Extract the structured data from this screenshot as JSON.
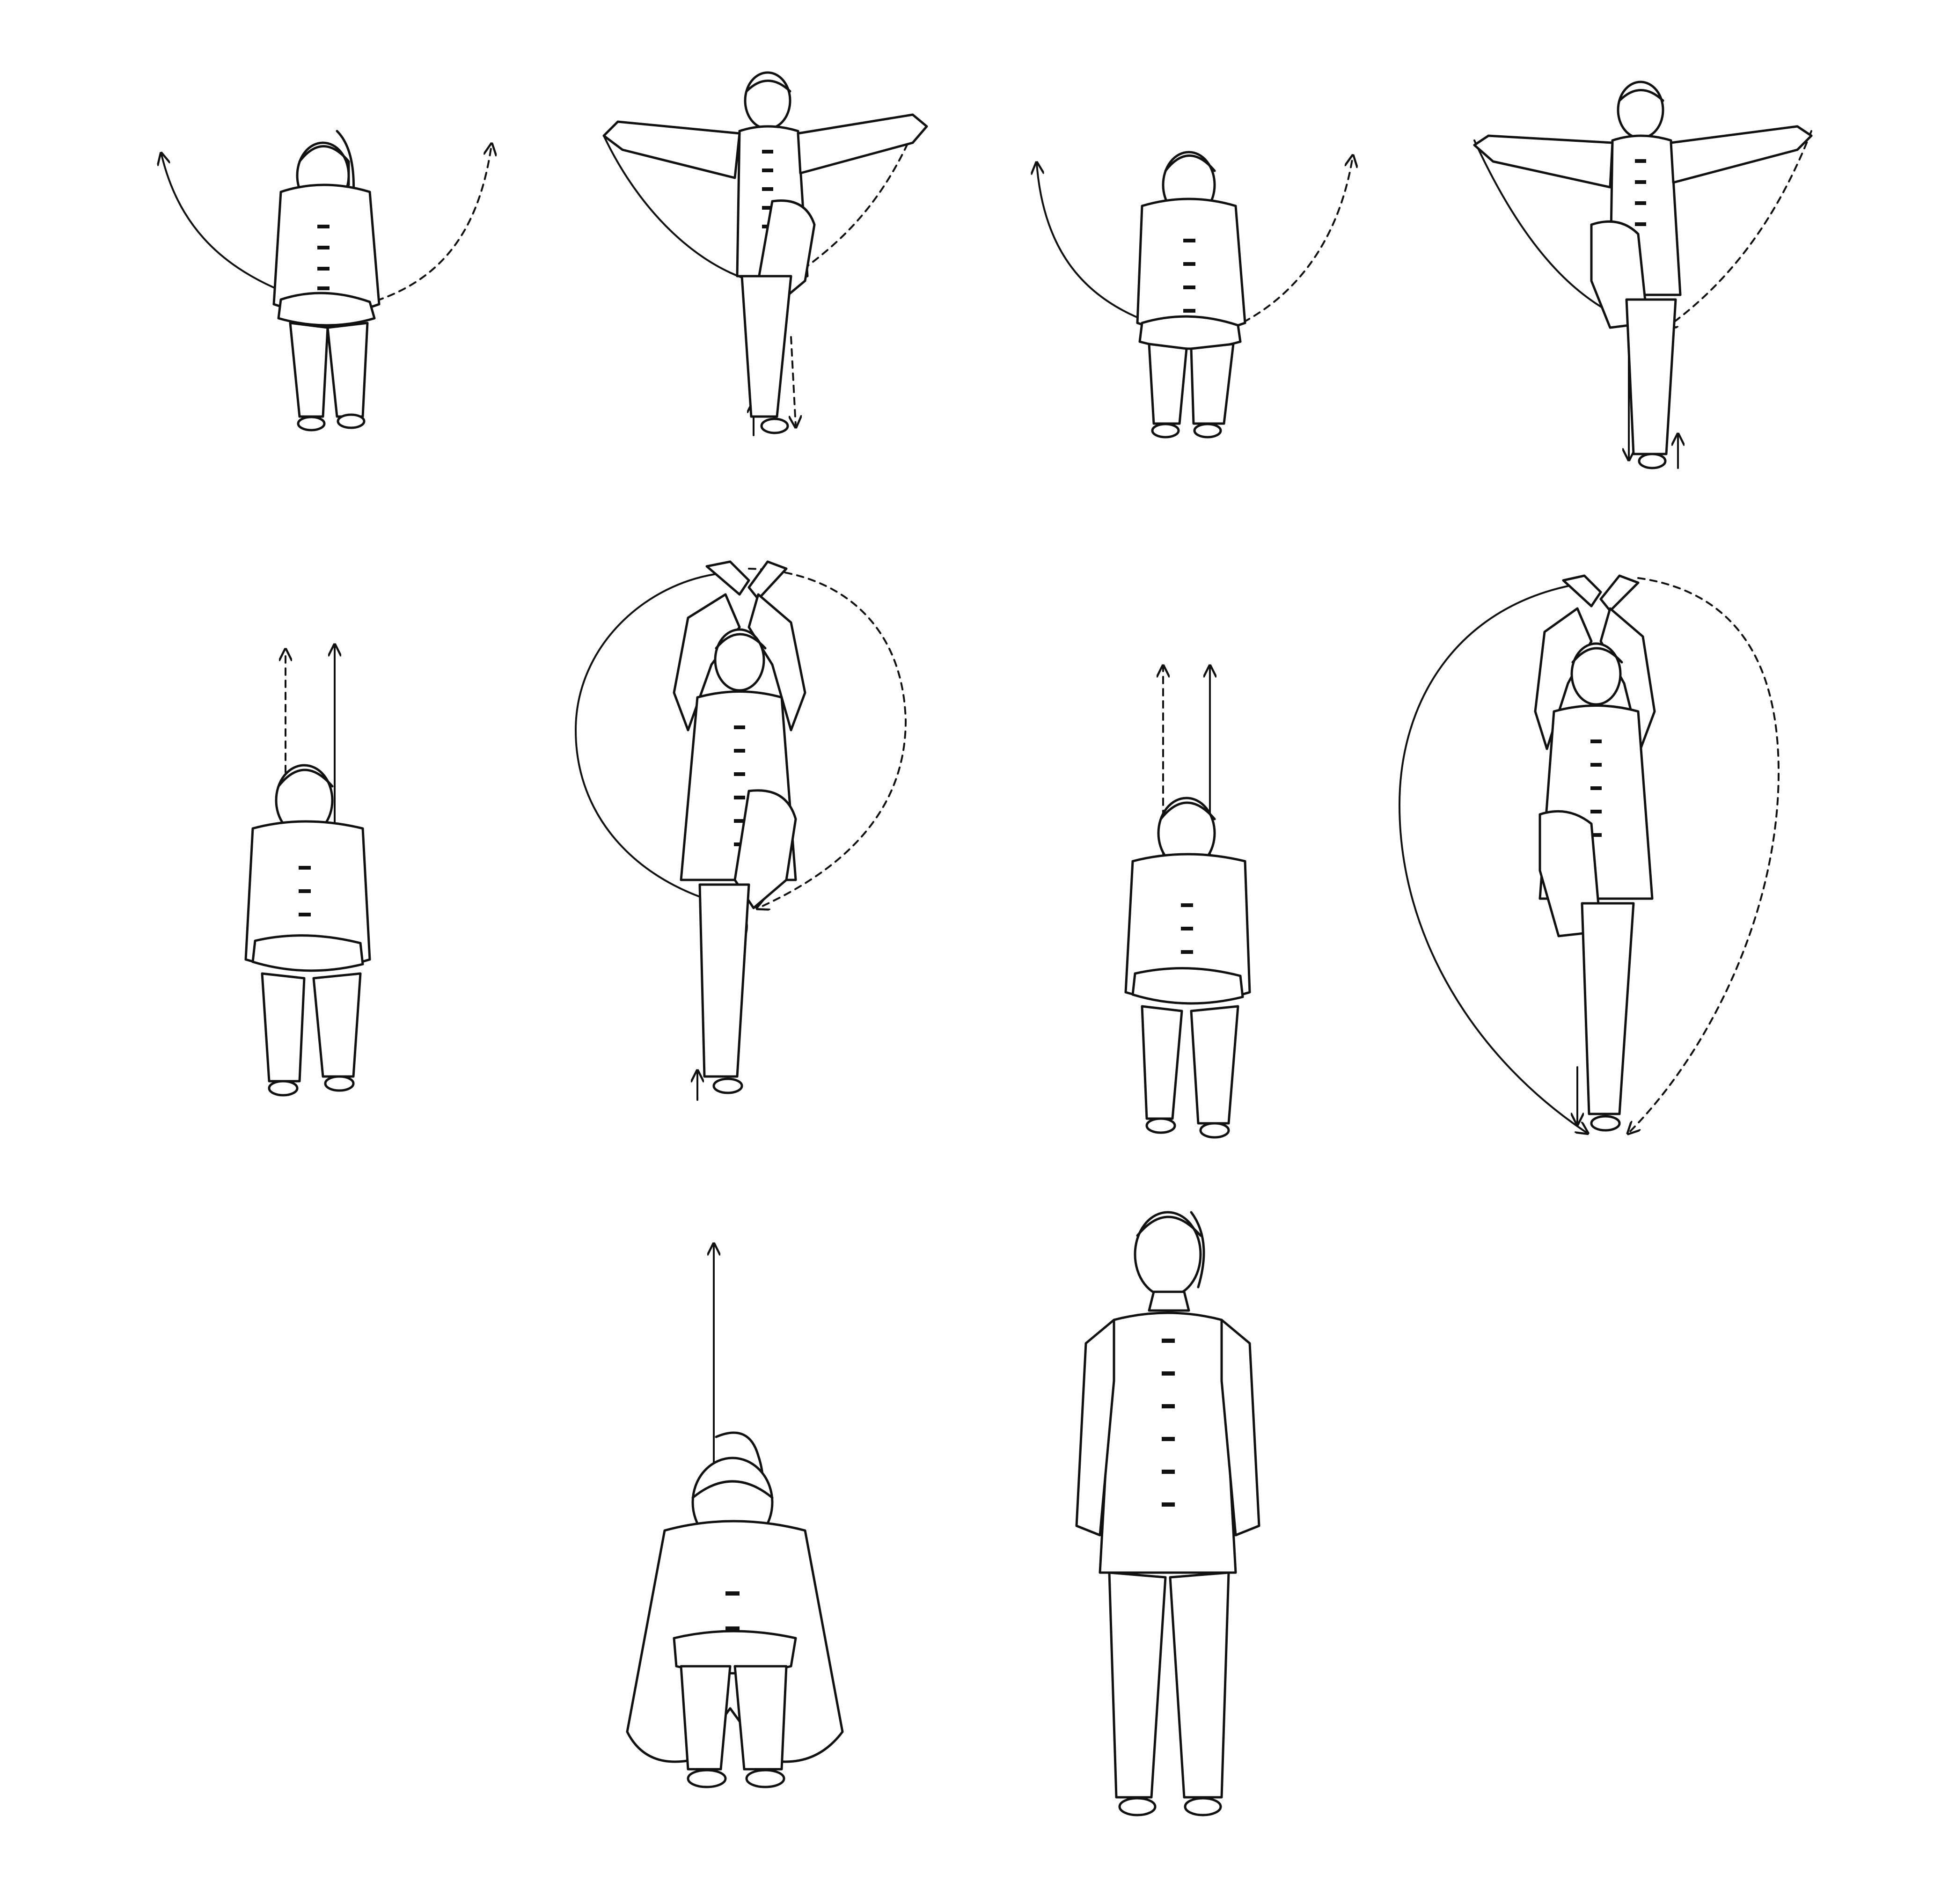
{
  "figure": {
    "background_color": "#ffffff",
    "line_color": "#111111",
    "panels": [
      {
        "id": "step-1",
        "pose": "squat-arms-crossed",
        "motion": "arms-sweep-outward-arc"
      },
      {
        "id": "step-2",
        "pose": "single-leg-stand-arms-wide",
        "motion": "arms-sweep-down-arc"
      },
      {
        "id": "step-3",
        "pose": "squat-arms-crossed",
        "motion": "arms-sweep-outward-arc"
      },
      {
        "id": "step-4",
        "pose": "single-leg-stand-arms-wide",
        "motion": "arms-sweep-down-arc"
      },
      {
        "id": "step-5",
        "pose": "squat-hands-on-knees",
        "motion": "rise-upward"
      },
      {
        "id": "step-6",
        "pose": "single-leg-stand-arms-overhead",
        "motion": "circle-arc"
      },
      {
        "id": "step-7",
        "pose": "squat-hands-on-knees",
        "motion": "rise-upward"
      },
      {
        "id": "step-8",
        "pose": "single-leg-stand-arms-overhead",
        "motion": "large-loop-arc"
      },
      {
        "id": "step-9",
        "pose": "deep-squat-head-down",
        "motion": "rise-upward"
      },
      {
        "id": "step-10",
        "pose": "standing-closing",
        "motion": "none"
      }
    ]
  }
}
